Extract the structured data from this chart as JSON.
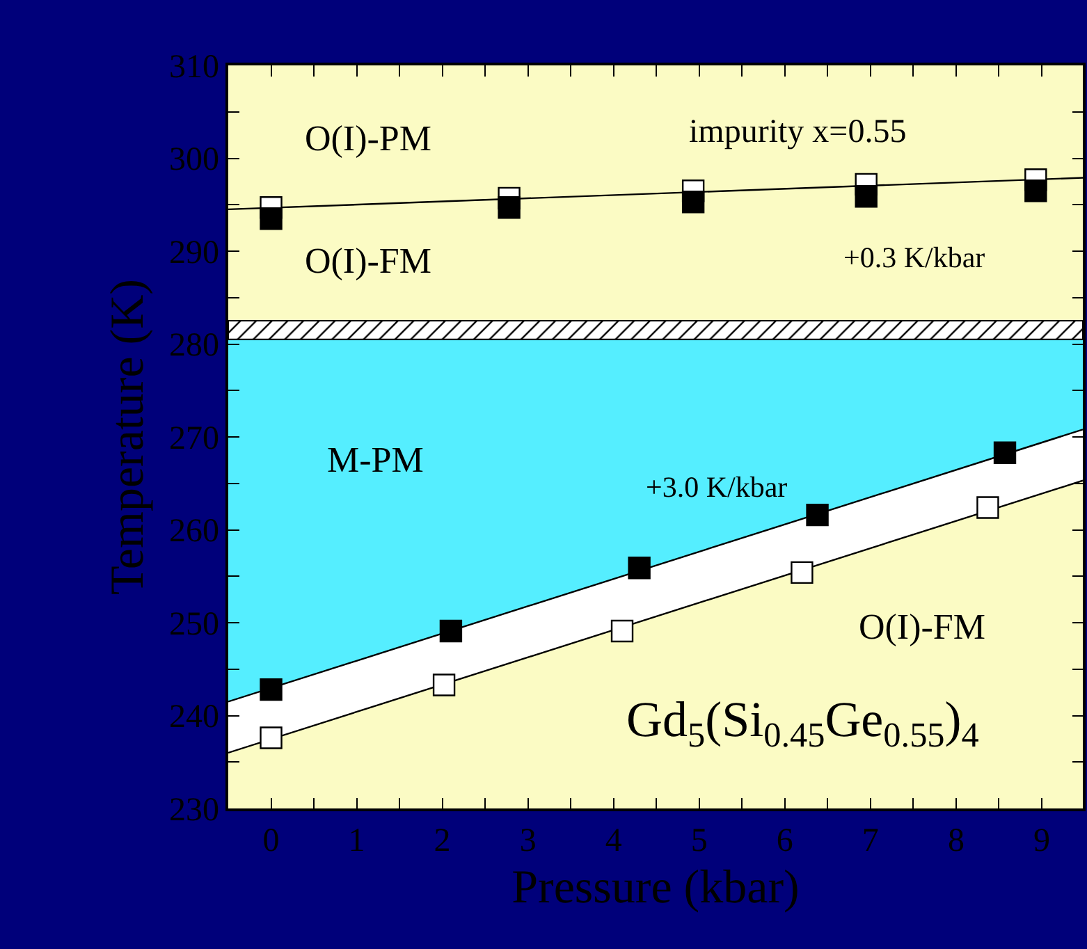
{
  "chart_data": {
    "type": "scatter",
    "xlabel": "Pressure (kbar)",
    "ylabel": "Temperature (K)",
    "xlim": [
      -0.5,
      9.48
    ],
    "ylim": [
      230,
      310
    ],
    "xticks": [
      0,
      {
        "value": 0.5,
        "label": null
      },
      1,
      {
        "value": 1.5,
        "label": null
      },
      2,
      {
        "value": 2.5,
        "label": null
      },
      3,
      {
        "value": 3.5,
        "label": null
      },
      4,
      {
        "value": 4.5,
        "label": null
      },
      5,
      {
        "value": 5.5,
        "label": null
      },
      6,
      {
        "value": 6.5,
        "label": null
      },
      7,
      {
        "value": 7.5,
        "label": null
      },
      8,
      {
        "value": 8.5,
        "label": null
      },
      9
    ],
    "yticks": [
      230,
      {
        "value": 235,
        "label": null
      },
      240,
      {
        "value": 245,
        "label": null
      },
      250,
      {
        "value": 255,
        "label": null
      },
      260,
      {
        "value": 265,
        "label": null
      },
      270,
      {
        "value": 275,
        "label": null
      },
      280,
      {
        "value": 285,
        "label": null
      },
      290,
      {
        "value": 295,
        "label": null
      },
      300,
      {
        "value": 305,
        "label": null
      },
      310
    ],
    "grid": false,
    "series": [
      {
        "type": "area",
        "color": "#55eeff",
        "x": [
          -0.5,
          9.48
        ],
        "values": [
          280.5,
          280.5
        ]
      },
      {
        "type": "area",
        "color": "#ffffff",
        "x": [
          -0.5,
          9.48
        ],
        "values": [
          241.5,
          270.8
        ]
      },
      {
        "type": "area",
        "color": "#fbfbc4",
        "x": [
          -0.5,
          9.48
        ],
        "values": [
          236.0,
          265.3
        ]
      },
      {
        "type": "line",
        "color": "#000000",
        "x": [
          -0.5,
          9.48
        ],
        "values": [
          294.5,
          297.9
        ]
      },
      {
        "marker": "square",
        "color": "#ffffff",
        "x": [
          0,
          2.78,
          4.93,
          6.95,
          8.93
        ],
        "values": [
          294.7,
          295.7,
          296.5,
          297.2,
          297.7
        ]
      },
      {
        "marker": "square",
        "color": "#000000",
        "x": [
          0,
          2.78,
          4.93,
          6.95,
          8.93
        ],
        "values": [
          293.5,
          294.7,
          295.3,
          295.9,
          296.5
        ]
      },
      {
        "marker": "square",
        "color": "#000000",
        "x": [
          0,
          2.1,
          4.3,
          6.38,
          8.57
        ],
        "values": [
          242.8,
          249.1,
          255.9,
          261.6,
          268.3
        ]
      },
      {
        "marker": "square",
        "color": "#ffffff",
        "x": [
          0,
          2.02,
          4.1,
          6.2,
          8.37
        ],
        "values": [
          237.6,
          243.3,
          249.1,
          255.4,
          262.4
        ]
      }
    ],
    "bands": [
      {
        "axis": "y",
        "from": 280.5,
        "to": 282.5,
        "color": "#ffffff"
      }
    ],
    "annotations": [
      "O(I)-PM",
      "impurity x=0.55",
      "O(I)-FM",
      "+0.3 K/kbar",
      "M-PM",
      "+3.0 K/kbar",
      "O(I)-FM",
      "Gd$_{5}$(Si$_{0.45}$Ge$_{0.55}$)$_{4}$"
    ]
  }
}
